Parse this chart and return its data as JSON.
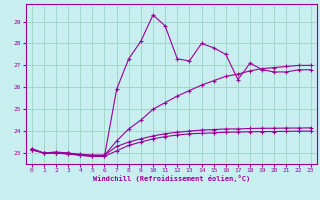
{
  "xlabel": "Windchill (Refroidissement éolien,°C)",
  "xlim": [
    -0.5,
    23.5
  ],
  "ylim": [
    22.5,
    29.8
  ],
  "yticks": [
    23,
    24,
    25,
    26,
    27,
    28,
    29
  ],
  "xticks": [
    0,
    1,
    2,
    3,
    4,
    5,
    6,
    7,
    8,
    9,
    10,
    11,
    12,
    13,
    14,
    15,
    16,
    17,
    18,
    19,
    20,
    21,
    22,
    23
  ],
  "background_color": "#c8eef0",
  "grid_color": "#a0d8c8",
  "line_color": "#990099",
  "line1_x": [
    0,
    1,
    2,
    3,
    4,
    5,
    6,
    7,
    8,
    9,
    10,
    11,
    12,
    13,
    14,
    15,
    16,
    17,
    18,
    19,
    20,
    21,
    22,
    23
  ],
  "line1_y": [
    23.2,
    23.0,
    23.0,
    23.0,
    22.9,
    22.85,
    22.85,
    25.9,
    27.3,
    28.1,
    29.3,
    28.8,
    27.3,
    27.2,
    28.0,
    27.8,
    27.5,
    26.35,
    27.1,
    26.8,
    26.7,
    26.7,
    26.8,
    26.8
  ],
  "line2_x": [
    0,
    1,
    2,
    3,
    4,
    5,
    6,
    7,
    8,
    9,
    10,
    11,
    12,
    13,
    14,
    15,
    16,
    17,
    18,
    19,
    20,
    21,
    22,
    23
  ],
  "line2_y": [
    23.2,
    23.0,
    23.0,
    23.0,
    22.9,
    22.9,
    22.9,
    23.55,
    24.1,
    24.5,
    25.0,
    25.3,
    25.6,
    25.85,
    26.1,
    26.3,
    26.5,
    26.6,
    26.75,
    26.85,
    26.9,
    26.95,
    27.0,
    27.0
  ],
  "line3_x": [
    0,
    1,
    2,
    3,
    4,
    5,
    6,
    7,
    8,
    9,
    10,
    11,
    12,
    13,
    14,
    15,
    16,
    17,
    18,
    19,
    20,
    21,
    22,
    23
  ],
  "line3_y": [
    23.15,
    23.0,
    23.05,
    23.0,
    22.95,
    22.9,
    22.9,
    23.3,
    23.5,
    23.65,
    23.78,
    23.88,
    23.95,
    24.0,
    24.05,
    24.07,
    24.1,
    24.1,
    24.12,
    24.13,
    24.13,
    24.14,
    24.14,
    24.15
  ],
  "line4_x": [
    0,
    1,
    2,
    3,
    4,
    5,
    6,
    7,
    8,
    9,
    10,
    11,
    12,
    13,
    14,
    15,
    16,
    17,
    18,
    19,
    20,
    21,
    22,
    23
  ],
  "line4_y": [
    23.15,
    23.0,
    23.0,
    22.95,
    22.9,
    22.85,
    22.85,
    23.1,
    23.35,
    23.5,
    23.65,
    23.75,
    23.82,
    23.88,
    23.9,
    23.92,
    23.95,
    23.96,
    23.97,
    23.98,
    23.98,
    23.99,
    24.0,
    24.0
  ]
}
